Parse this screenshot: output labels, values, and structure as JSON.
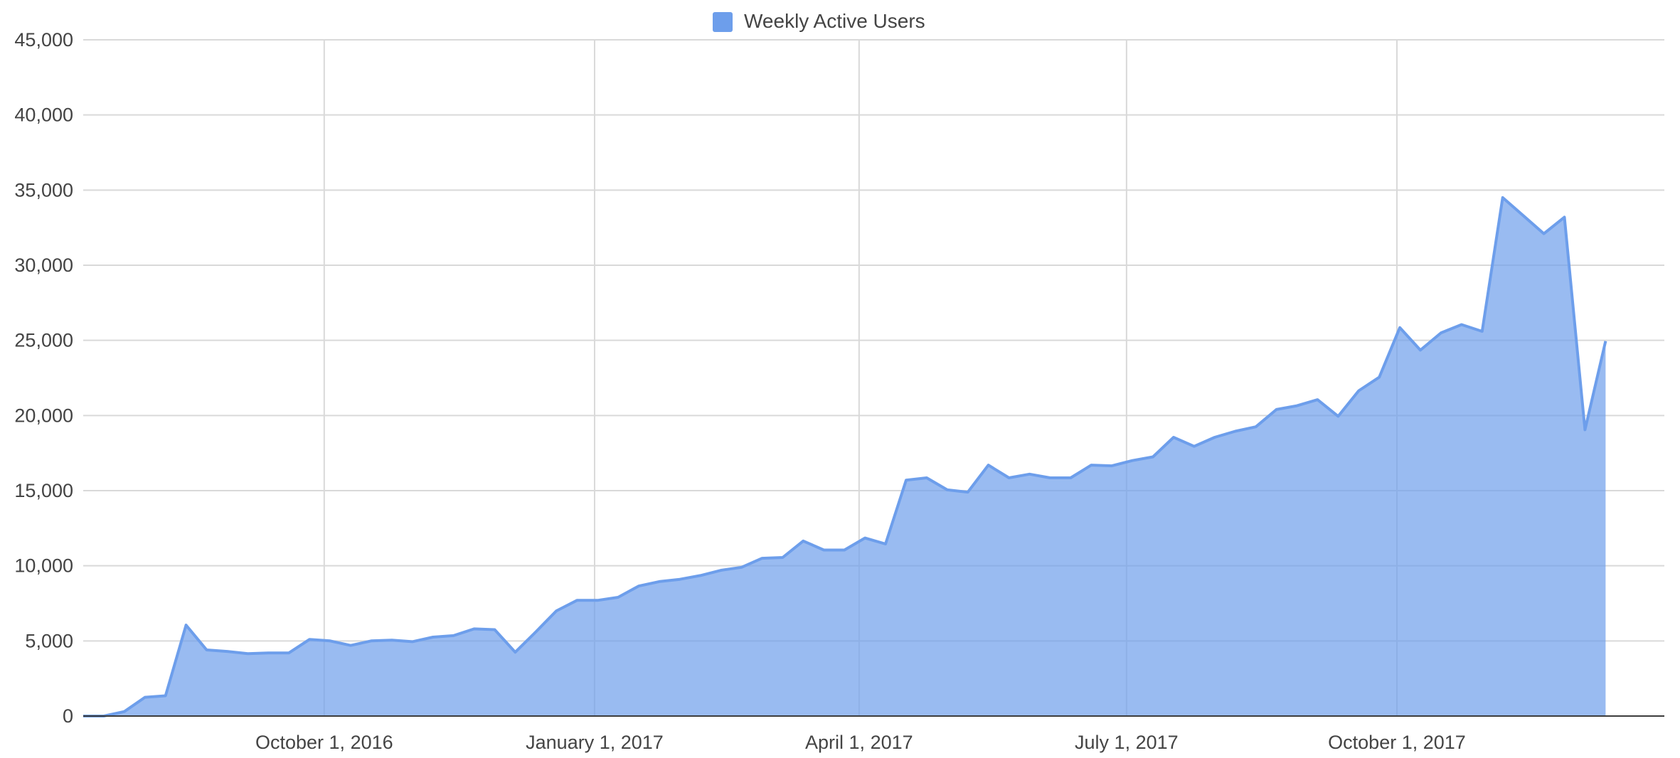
{
  "chart_data": {
    "type": "area",
    "legend": {
      "position": "top-center",
      "label": "Weekly Active Users"
    },
    "colors": {
      "series": "#6d9eeb",
      "fill": "#6d9eeb",
      "grid": "#d9d9d9",
      "baseline": "#3c3c3c",
      "text": "#444444"
    },
    "grid": true,
    "ylim": [
      0,
      45000
    ],
    "xlim": [
      "2016-07-11",
      "2017-12-31"
    ],
    "y_ticks": [
      {
        "value": 0,
        "label": "0"
      },
      {
        "value": 5000,
        "label": "5,000"
      },
      {
        "value": 10000,
        "label": "10,000"
      },
      {
        "value": 15000,
        "label": "15,000"
      },
      {
        "value": 20000,
        "label": "20,000"
      },
      {
        "value": 25000,
        "label": "25,000"
      },
      {
        "value": 30000,
        "label": "30,000"
      },
      {
        "value": 35000,
        "label": "35,000"
      },
      {
        "value": 40000,
        "label": "40,000"
      },
      {
        "value": 45000,
        "label": "45,000"
      }
    ],
    "x_ticks": [
      {
        "value": "2016-10-01",
        "label": "October 1, 2016"
      },
      {
        "value": "2017-01-01",
        "label": "January 1, 2017"
      },
      {
        "value": "2017-04-01",
        "label": "April 1, 2017"
      },
      {
        "value": "2017-07-01",
        "label": "July 1, 2017"
      },
      {
        "value": "2017-10-01",
        "label": "October 1, 2017"
      }
    ],
    "series": [
      {
        "name": "Weekly Active Users",
        "points": [
          [
            "2016-07-11",
            0
          ],
          [
            "2016-07-18",
            0
          ],
          [
            "2016-07-25",
            300
          ],
          [
            "2016-08-01",
            1250
          ],
          [
            "2016-08-08",
            1350
          ],
          [
            "2016-08-15",
            6050
          ],
          [
            "2016-08-22",
            4400
          ],
          [
            "2016-08-29",
            4300
          ],
          [
            "2016-09-05",
            4150
          ],
          [
            "2016-09-12",
            4200
          ],
          [
            "2016-09-19",
            4200
          ],
          [
            "2016-09-26",
            5100
          ],
          [
            "2016-10-03",
            5000
          ],
          [
            "2016-10-10",
            4700
          ],
          [
            "2016-10-17",
            5000
          ],
          [
            "2016-10-24",
            5050
          ],
          [
            "2016-10-31",
            4950
          ],
          [
            "2016-11-07",
            5250
          ],
          [
            "2016-11-14",
            5350
          ],
          [
            "2016-11-21",
            5800
          ],
          [
            "2016-11-28",
            5750
          ],
          [
            "2016-12-05",
            4250
          ],
          [
            "2016-12-12",
            5600
          ],
          [
            "2016-12-19",
            7000
          ],
          [
            "2016-12-26",
            7700
          ],
          [
            "2017-01-02",
            7700
          ],
          [
            "2017-01-09",
            7900
          ],
          [
            "2017-01-16",
            8650
          ],
          [
            "2017-01-23",
            8950
          ],
          [
            "2017-01-30",
            9100
          ],
          [
            "2017-02-06",
            9350
          ],
          [
            "2017-02-13",
            9700
          ],
          [
            "2017-02-20",
            9900
          ],
          [
            "2017-02-27",
            10500
          ],
          [
            "2017-03-06",
            10550
          ],
          [
            "2017-03-13",
            11650
          ],
          [
            "2017-03-20",
            11050
          ],
          [
            "2017-03-27",
            11050
          ],
          [
            "2017-04-03",
            11850
          ],
          [
            "2017-04-10",
            11450
          ],
          [
            "2017-04-17",
            15700
          ],
          [
            "2017-04-24",
            15850
          ],
          [
            "2017-05-01",
            15050
          ],
          [
            "2017-05-08",
            14900
          ],
          [
            "2017-05-15",
            16700
          ],
          [
            "2017-05-22",
            15850
          ],
          [
            "2017-05-29",
            16100
          ],
          [
            "2017-06-05",
            15850
          ],
          [
            "2017-06-12",
            15850
          ],
          [
            "2017-06-19",
            16700
          ],
          [
            "2017-06-26",
            16650
          ],
          [
            "2017-07-03",
            17000
          ],
          [
            "2017-07-10",
            17250
          ],
          [
            "2017-07-17",
            18550
          ],
          [
            "2017-07-24",
            17950
          ],
          [
            "2017-07-31",
            18550
          ],
          [
            "2017-08-07",
            18950
          ],
          [
            "2017-08-14",
            19250
          ],
          [
            "2017-08-21",
            20400
          ],
          [
            "2017-08-28",
            20650
          ],
          [
            "2017-09-04",
            21050
          ],
          [
            "2017-09-11",
            19950
          ],
          [
            "2017-09-18",
            21650
          ],
          [
            "2017-09-25",
            22550
          ],
          [
            "2017-10-02",
            25850
          ],
          [
            "2017-10-09",
            24350
          ],
          [
            "2017-10-16",
            25500
          ],
          [
            "2017-10-23",
            26050
          ],
          [
            "2017-10-30",
            25600
          ],
          [
            "2017-11-06",
            34500
          ],
          [
            "2017-11-13",
            33300
          ],
          [
            "2017-11-20",
            32100
          ],
          [
            "2017-11-27",
            33200
          ],
          [
            "2017-12-04",
            19050
          ],
          [
            "2017-12-11",
            24950
          ]
        ]
      }
    ]
  }
}
